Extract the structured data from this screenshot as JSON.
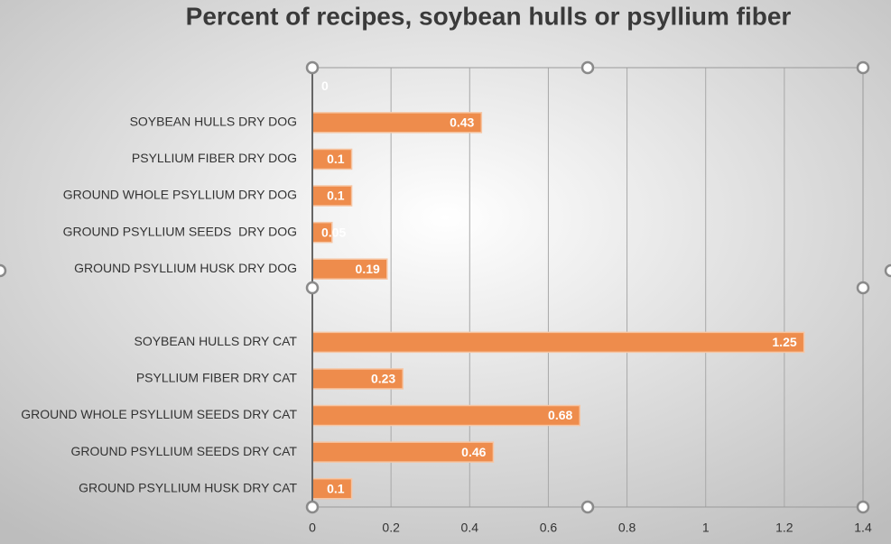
{
  "chart_data": {
    "type": "bar",
    "orientation": "horizontal",
    "title": "Percent of recipes, soybean hulls or psyllium fiber",
    "categories": [
      null,
      "SOYBEAN HULLS DRY DOG",
      "PSYLLIUM FIBER DRY DOG",
      "GROUND WHOLE PSYLLIUM DRY DOG",
      "GROUND PSYLLIUM SEEDS  DRY DOG",
      "GROUND PSYLLIUM HUSK DRY DOG",
      null,
      "SOYBEAN HULLS DRY CAT",
      "PSYLLIUM FIBER DRY CAT",
      "GROUND WHOLE PSYLLIUM SEEDS DRY CAT",
      "GROUND PSYLLIUM SEEDS DRY CAT",
      "GROUND PSYLLIUM HUSK DRY CAT"
    ],
    "values": [
      0,
      0.43,
      0.1,
      0.1,
      0.05,
      0.19,
      null,
      1.25,
      0.23,
      0.68,
      0.46,
      0.1
    ],
    "color": "#ee8c4c",
    "xlim": [
      0,
      1.4
    ],
    "xticks": [
      0,
      0.2,
      0.4,
      0.6,
      0.8,
      1,
      1.2,
      1.4
    ],
    "grid": true
  }
}
